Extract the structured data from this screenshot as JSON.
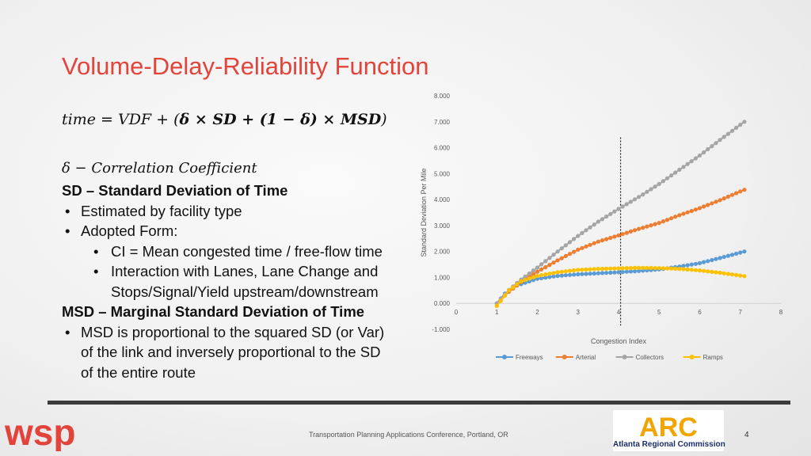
{
  "slide": {
    "title": "Volume-Delay-Reliability Function",
    "formula": {
      "lhs": "time = VDF + (",
      "delta1": "δ",
      "times1": " × ",
      "sd": "SD",
      "plus": " + (",
      "one": "1",
      "minus": " − ",
      "delta2": "δ",
      "close": ") × ",
      "msd": "MSD",
      "end": ")"
    },
    "correlation_line": "δ  −  Correlation Coefficient",
    "sd_heading": "SD – Standard Deviation of Time",
    "sd_bullets": [
      "Estimated by facility type",
      "Adopted Form:"
    ],
    "sd_sub_bullets": [
      "CI = Mean congested time / free-flow time",
      "Interaction with Lanes, Lane Change and",
      "Stops/Signal/Yield upstream/downstream"
    ],
    "msd_heading": "MSD – Marginal Standard Deviation of Time",
    "msd_bullet_lines": [
      "MSD is proportional to the squared SD (or Var)",
      "of the link and inversely proportional to the SD",
      "of the entire route"
    ],
    "footer": "Transportation Planning Applications Conference, Portland, OR",
    "page_number": "4",
    "logos": {
      "left": "wsp",
      "right_caption": "Atlanta Regional Commission",
      "right_mark": "ARC"
    },
    "colors": {
      "title": "#e2443c",
      "freeways": "#5b9bd5",
      "arterial": "#ed7d31",
      "collectors": "#a5a5a5",
      "ramps": "#ffc000"
    }
  },
  "chart_data": {
    "type": "line",
    "xlabel": "Congestion Index",
    "ylabel": "Standard Deviation Per Mile",
    "xlim": [
      0,
      8
    ],
    "ylim": [
      -1,
      8
    ],
    "xticks": [
      0,
      1,
      2,
      3,
      4,
      5,
      6,
      7,
      8
    ],
    "yticks": [
      -1,
      0,
      1,
      2,
      3,
      4,
      5,
      6,
      7,
      8
    ],
    "ytick_labels": [
      "-1.000",
      "0.000",
      "1.000",
      "2.000",
      "3.000",
      "4.000",
      "5.000",
      "6.000",
      "7.000",
      "8.000"
    ],
    "vertical_marker_x": 4.05,
    "legend_position": "bottom",
    "series": [
      {
        "name": "Freeways",
        "color": "#5b9bd5",
        "points": [
          [
            1,
            0
          ],
          [
            1.2,
            0.38
          ],
          [
            1.5,
            0.69
          ],
          [
            2,
            0.95
          ],
          [
            2.5,
            1.06
          ],
          [
            3,
            1.12
          ],
          [
            3.5,
            1.16
          ],
          [
            4,
            1.2
          ],
          [
            4.5,
            1.25
          ],
          [
            5,
            1.31
          ],
          [
            5.5,
            1.42
          ],
          [
            6,
            1.55
          ],
          [
            6.5,
            1.75
          ],
          [
            7.1,
            2.0
          ]
        ]
      },
      {
        "name": "Arterial",
        "color": "#ed7d31",
        "points": [
          [
            1,
            0
          ],
          [
            1.3,
            0.45
          ],
          [
            1.6,
            0.82
          ],
          [
            2,
            1.22
          ],
          [
            2.5,
            1.66
          ],
          [
            3,
            2.07
          ],
          [
            3.5,
            2.38
          ],
          [
            4,
            2.62
          ],
          [
            4.5,
            2.87
          ],
          [
            5,
            3.1
          ],
          [
            5.5,
            3.4
          ],
          [
            6,
            3.67
          ],
          [
            6.5,
            3.98
          ],
          [
            7.1,
            4.38
          ]
        ]
      },
      {
        "name": "Collectors",
        "color": "#a5a5a5",
        "points": [
          [
            1,
            0
          ],
          [
            1.3,
            0.52
          ],
          [
            1.6,
            0.92
          ],
          [
            2,
            1.38
          ],
          [
            2.5,
            2.0
          ],
          [
            3,
            2.6
          ],
          [
            3.5,
            3.15
          ],
          [
            4,
            3.64
          ],
          [
            4.5,
            4.1
          ],
          [
            5,
            4.6
          ],
          [
            5.5,
            5.15
          ],
          [
            6,
            5.7
          ],
          [
            6.5,
            6.3
          ],
          [
            7.1,
            7.0
          ]
        ]
      },
      {
        "name": "Ramps",
        "color": "#ffc000",
        "points": [
          [
            1,
            -0.1
          ],
          [
            1.3,
            0.5
          ],
          [
            1.6,
            0.85
          ],
          [
            2,
            1.06
          ],
          [
            2.5,
            1.2
          ],
          [
            3,
            1.29
          ],
          [
            3.5,
            1.33
          ],
          [
            4,
            1.35
          ],
          [
            4.5,
            1.37
          ],
          [
            5,
            1.36
          ],
          [
            5.5,
            1.33
          ],
          [
            6,
            1.27
          ],
          [
            6.5,
            1.18
          ],
          [
            7.1,
            1.05
          ]
        ]
      }
    ]
  }
}
